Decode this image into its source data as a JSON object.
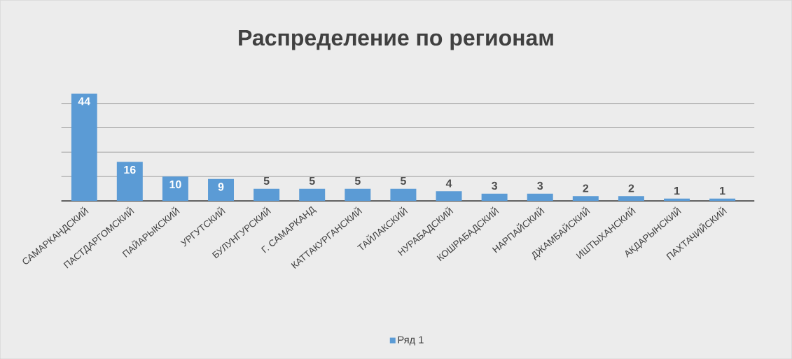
{
  "chart_data": {
    "type": "bar",
    "title": "Распределение по регионам",
    "categories": [
      "САМАРКАНДСКИЙ",
      "ПАСТДАРГОМСКИЙ",
      "ПАЙАРЫКСКИЙ",
      "УРГУТСКИЙ",
      "БУЛУНГУРСКИЙ",
      "Г. САМАРКАНД",
      "КАТТАКУРГАНСКИЙ",
      "ТАЙЛАКСКИЙ",
      "НУРАБАДСКИЙ",
      "КОШРАБАДСКИЙ",
      "НАРПАЙСКИЙ",
      "ДЖАМБАЙСКИЙ",
      "ИШТЫХАНСКИЙ",
      "АКДАРЫНСКИЙ",
      "ПАХТАЧИЙСКИЙ"
    ],
    "series": [
      {
        "name": "Ряд 1",
        "color": "#5b9bd5",
        "values": [
          44,
          16,
          10,
          9,
          5,
          5,
          5,
          5,
          4,
          3,
          3,
          2,
          2,
          1,
          1
        ]
      }
    ],
    "yticks": [
      {
        "value": 0,
        "label": null
      },
      {
        "value": 10,
        "label": null
      },
      {
        "value": 20,
        "label": null
      },
      {
        "value": 30,
        "label": null
      },
      {
        "value": 40,
        "label": null
      }
    ],
    "tick_labels": "x",
    "grid": "y",
    "data_labels": true,
    "legend": "bottom"
  }
}
